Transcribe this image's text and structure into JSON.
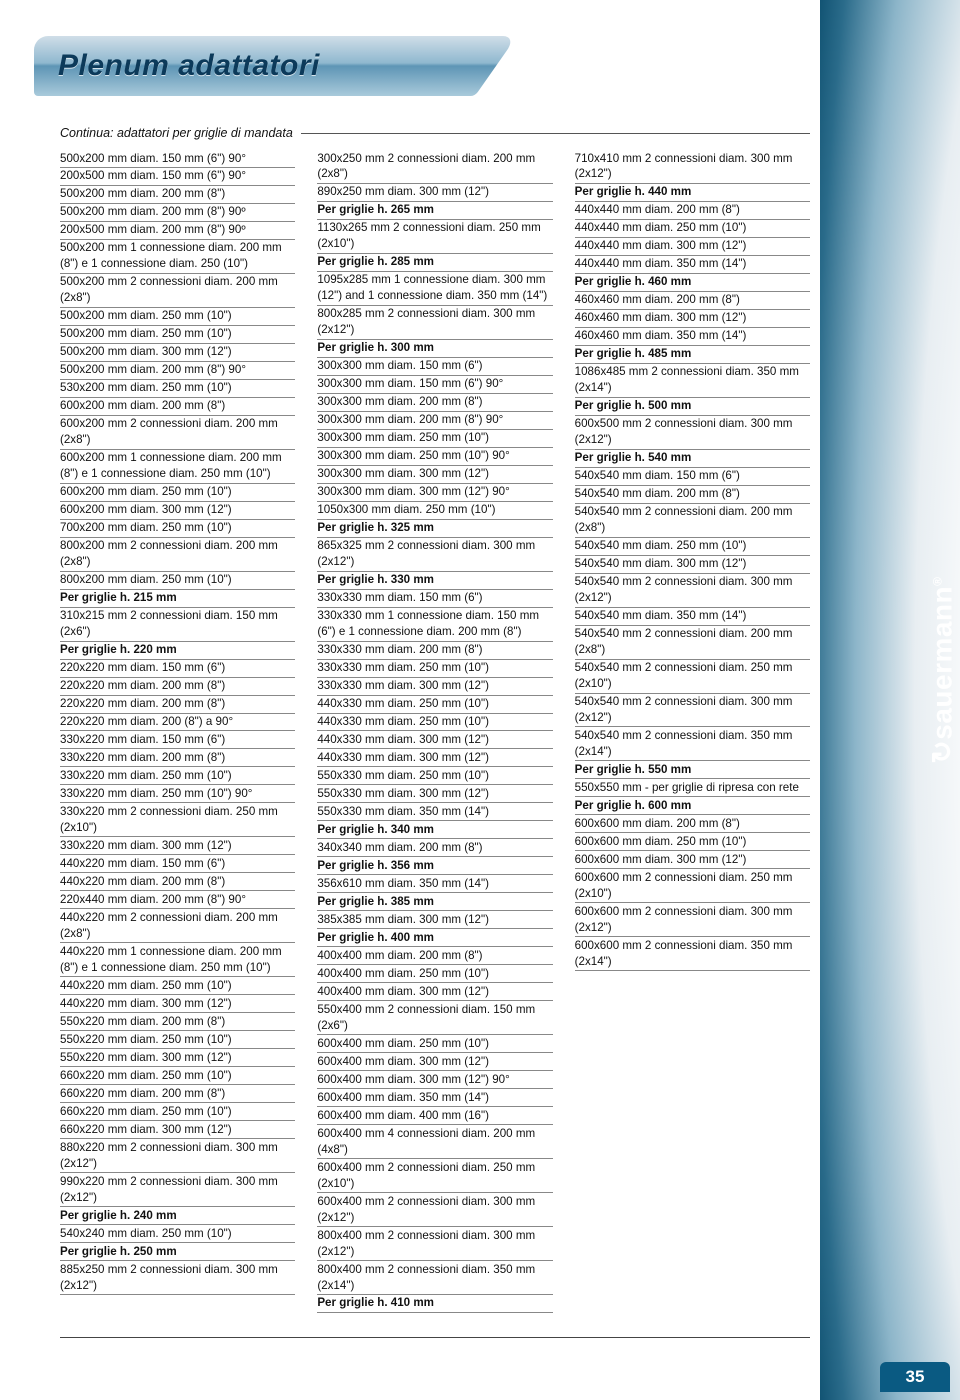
{
  "header": {
    "title": "Plenum adattatori"
  },
  "subtitle": "Continua: adattatori per griglie di mandata",
  "brand": "sauermann",
  "page_number": "35",
  "colors": {
    "page_bg": "#ffffff",
    "tab_gradient_top": "#d0dee8",
    "tab_gradient_bottom": "#a9cadb",
    "tab_text": "#0c3a5a",
    "curve_dark": "#084a6a",
    "line": "#888888",
    "text": "#111111",
    "footer_tab": "#0a5a82"
  },
  "typography": {
    "title_fontsize_pt": 22,
    "subtitle_fontsize_pt": 9.5,
    "row_fontsize_pt": 8.5,
    "brand_fontsize_pt": 20
  },
  "rows": [
    {
      "t": "500x200 mm diam. 150 mm (6\") 90°"
    },
    {
      "t": "200x500 mm diam. 150 mm (6\") 90°"
    },
    {
      "t": "500x200 mm diam. 200 mm (8\")"
    },
    {
      "t": "500x200 mm diam. 200 mm (8\") 90º"
    },
    {
      "t": "200x500 mm diam. 200 mm (8\") 90º"
    },
    {
      "t": "500x200 mm 1 connessione diam. 200 mm (8\") e 1 connessione diam. 250 (10\")"
    },
    {
      "t": "500x200 mm 2 connessioni diam. 200 mm (2x8\")"
    },
    {
      "t": "500x200 mm diam. 250 mm (10\")"
    },
    {
      "t": "500x200 mm diam. 250 mm (10\")"
    },
    {
      "t": "500x200 mm diam. 300 mm (12\")"
    },
    {
      "t": "500x200 mm diam. 200 mm (8\") 90°"
    },
    {
      "t": "530x200 mm diam. 250 mm (10\")"
    },
    {
      "t": "600x200 mm diam. 200 mm (8\")"
    },
    {
      "t": "600x200 mm 2 connessioni diam. 200 mm (2x8\")"
    },
    {
      "t": "600x200 mm 1 connessione diam. 200 mm (8\") e 1 connessione diam. 250 mm (10\")"
    },
    {
      "t": "600x200 mm diam. 250 mm (10\")"
    },
    {
      "t": "600x200 mm diam. 300 mm (12\")"
    },
    {
      "t": "700x200 mm diam. 250 mm (10\")"
    },
    {
      "t": "800x200 mm 2 connessioni diam. 200 mm (2x8\")"
    },
    {
      "t": "800x200 mm diam. 250 mm (10\")"
    },
    {
      "t": "Per griglie h. 215 mm",
      "h": true
    },
    {
      "t": "310x215 mm 2 connessioni diam. 150 mm (2x6\")"
    },
    {
      "t": "Per griglie h. 220 mm",
      "h": true
    },
    {
      "t": "220x220 mm diam. 150 mm (6\")"
    },
    {
      "t": "220x220 mm diam. 200 mm (8\")"
    },
    {
      "t": "220x220 mm diam. 200 mm (8\")"
    },
    {
      "t": "220x220 mm diam. 200 (8\") a 90°"
    },
    {
      "t": "330x220 mm diam. 150 mm (6\")"
    },
    {
      "t": "330x220 mm diam. 200 mm (8\")"
    },
    {
      "t": "330x220 mm diam. 250 mm (10\")"
    },
    {
      "t": "330x220 mm diam. 250 mm (10\") 90°"
    },
    {
      "t": "330x220 mm 2 connessioni diam. 250 mm (2x10\")"
    },
    {
      "t": "330x220 mm diam. 300 mm (12\")"
    },
    {
      "t": "440x220 mm diam. 150 mm (6\")"
    },
    {
      "t": "440x220 mm diam. 200 mm (8\")"
    },
    {
      "t": "220x440 mm diam. 200 mm (8\") 90°"
    },
    {
      "t": "440x220 mm 2 connessioni diam. 200 mm (2x8\")"
    },
    {
      "t": "440x220 mm 1 connessione diam. 200 mm (8\") e 1 connessione diam. 250 mm (10\")"
    },
    {
      "t": "440x220 mm diam. 250 mm (10\")"
    },
    {
      "t": "440x220 mm diam. 300 mm (12\")"
    },
    {
      "t": "550x220 mm diam. 200 mm (8\")"
    },
    {
      "t": "550x220 mm diam. 250 mm (10\")"
    },
    {
      "t": "550x220 mm diam. 300 mm (12\")"
    },
    {
      "t": "660x220 mm diam. 250 mm (10\")"
    },
    {
      "t": "660x220 mm diam. 200 mm (8\")"
    },
    {
      "t": "660x220 mm diam. 250 mm (10\")"
    },
    {
      "t": "660x220 mm diam. 300 mm (12\")"
    },
    {
      "t": "880x220 mm 2 connessioni diam. 300 mm (2x12\")"
    },
    {
      "t": "990x220 mm 2 connessioni diam. 300 mm (2x12\")"
    },
    {
      "t": "Per griglie h. 240 mm",
      "h": true
    },
    {
      "t": "540x240 mm diam. 250 mm (10\")"
    },
    {
      "t": "Per griglie h. 250 mm",
      "h": true
    },
    {
      "t": "885x250 mm 2 connessioni diam. 300 mm (2x12\")"
    },
    {
      "t": "300x250 mm 2 connessioni diam. 200 mm (2x8\")"
    },
    {
      "t": "890x250 mm diam. 300 mm (12\")"
    },
    {
      "t": "Per griglie h. 265 mm",
      "h": true
    },
    {
      "t": "1130x265 mm 2 connessioni diam. 250 mm (2x10\")"
    },
    {
      "t": "Per griglie h. 285 mm",
      "h": true
    },
    {
      "t": "1095x285 mm 1 connessione diam. 300 mm (12\") and 1 connessione diam. 350 mm (14\")"
    },
    {
      "t": "800x285 mm 2 connessioni diam. 300 mm (2x12\")"
    },
    {
      "t": "Per griglie h. 300 mm",
      "h": true
    },
    {
      "t": "300x300 mm diam. 150 mm (6\")"
    },
    {
      "t": "300x300 mm diam. 150 mm (6\") 90°"
    },
    {
      "t": "300x300 mm diam. 200 mm (8\")"
    },
    {
      "t": "300x300 mm diam. 200 mm (8\") 90°"
    },
    {
      "t": "300x300 mm diam. 250 mm (10\")"
    },
    {
      "t": "300x300 mm diam. 250 mm (10\") 90°"
    },
    {
      "t": "300x300 mm diam. 300 mm (12\")"
    },
    {
      "t": "300x300 mm diam. 300 mm (12\") 90°"
    },
    {
      "t": "1050x300 mm diam. 250 mm (10\")"
    },
    {
      "t": "Per griglie h. 325 mm",
      "h": true
    },
    {
      "t": "865x325 mm 2 connessioni diam. 300 mm (2x12\")"
    },
    {
      "t": "Per griglie h. 330 mm",
      "h": true
    },
    {
      "t": "330x330 mm diam. 150 mm (6\")"
    },
    {
      "t": "330x330 mm 1 connessione diam. 150 mm (6\") e 1 connessione diam. 200 mm (8\")"
    },
    {
      "t": "330x330 mm diam. 200 mm (8\")"
    },
    {
      "t": "330x330 mm diam. 250 mm (10\")"
    },
    {
      "t": "330x330 mm diam. 300 mm (12\")"
    },
    {
      "t": "440x330 mm diam. 250 mm (10\")"
    },
    {
      "t": "440x330 mm diam. 250 mm (10\")"
    },
    {
      "t": "440x330 mm diam. 300 mm (12\")"
    },
    {
      "t": "440x330 mm diam. 300 mm (12\")"
    },
    {
      "t": "550x330 mm diam. 250 mm (10\")"
    },
    {
      "t": "550x330 mm diam. 300 mm (12\")"
    },
    {
      "t": "550x330 mm diam. 350 mm (14\")"
    },
    {
      "t": "Per griglie h. 340 mm",
      "h": true
    },
    {
      "t": "340x340 mm diam. 200 mm (8\")"
    },
    {
      "t": "Per griglie h. 356 mm",
      "h": true
    },
    {
      "t": "356x610 mm diam. 350 mm (14\")"
    },
    {
      "t": "Per griglie h. 385 mm",
      "h": true
    },
    {
      "t": "385x385 mm diam. 300 mm (12\")"
    },
    {
      "t": "Per griglie h. 400 mm",
      "h": true
    },
    {
      "t": "400x400 mm diam. 200 mm (8\")"
    },
    {
      "t": "400x400 mm diam. 250 mm (10\")"
    },
    {
      "t": "400x400 mm diam. 300 mm (12\")"
    },
    {
      "t": "550x400 mm 2 connessioni diam. 150 mm (2x6\")"
    },
    {
      "t": "600x400 mm diam. 250 mm (10\")"
    },
    {
      "t": "600x400 mm diam. 300 mm (12\")"
    },
    {
      "t": "600x400 mm diam. 300 mm (12\") 90°"
    },
    {
      "t": "600x400 mm diam. 350 mm (14\")"
    },
    {
      "t": "600x400 mm diam. 400 mm (16\")"
    },
    {
      "t": "600x400 mm 4 connessioni diam. 200 mm (4x8\")"
    },
    {
      "t": "600x400 mm 2 connessioni diam. 250 mm (2x10\")"
    },
    {
      "t": "600x400 mm 2 connessioni diam. 300 mm (2x12\")"
    },
    {
      "t": "800x400 mm 2 connessioni diam. 300 mm (2x12\")"
    },
    {
      "t": "800x400 mm 2 connessioni diam. 350 mm (2x14\")"
    },
    {
      "t": "Per griglie h. 410 mm",
      "h": true
    },
    {
      "t": "710x410 mm 2 connessioni diam. 300 mm (2x12\")"
    },
    {
      "t": "Per griglie h. 440 mm",
      "h": true
    },
    {
      "t": "440x440 mm diam. 200 mm (8\")"
    },
    {
      "t": "440x440 mm diam. 250 mm (10\")"
    },
    {
      "t": "440x440 mm diam. 300 mm (12\")"
    },
    {
      "t": "440x440 mm diam. 350 mm (14\")"
    },
    {
      "t": "Per griglie h. 460 mm",
      "h": true
    },
    {
      "t": "460x460 mm diam. 200 mm (8\")"
    },
    {
      "t": "460x460 mm diam. 300 mm (12\")"
    },
    {
      "t": "460x460 mm diam. 350 mm (14\")"
    },
    {
      "t": "Per griglie h. 485 mm",
      "h": true
    },
    {
      "t": "1086x485 mm 2 connessioni diam. 350 mm (2x14\")"
    },
    {
      "t": "Per griglie h. 500 mm",
      "h": true
    },
    {
      "t": "600x500 mm 2 connessioni diam. 300 mm (2x12\")"
    },
    {
      "t": "Per griglie h. 540 mm",
      "h": true
    },
    {
      "t": "540x540 mm diam. 150 mm (6\")"
    },
    {
      "t": "540x540 mm diam. 200 mm (8\")"
    },
    {
      "t": "540x540 mm 2 connessioni diam. 200 mm (2x8\")"
    },
    {
      "t": "540x540 mm diam. 250 mm (10\")"
    },
    {
      "t": "540x540 mm diam. 300 mm (12\")"
    },
    {
      "t": "540x540 mm 2 connessioni diam. 300 mm (2x12\")"
    },
    {
      "t": "540x540 mm diam. 350 mm (14\")"
    },
    {
      "t": "540x540 mm 2 connessioni diam. 200 mm (2x8\")"
    },
    {
      "t": "540x540 mm 2 connessioni diam. 250 mm (2x10\")"
    },
    {
      "t": "540x540 mm 2 connessioni diam. 300 mm (2x12\")"
    },
    {
      "t": "540x540 mm 2 connessioni diam. 350 mm (2x14\")"
    },
    {
      "t": "Per griglie h. 550 mm",
      "h": true
    },
    {
      "t": "550x550 mm - per griglie di ripresa con rete"
    },
    {
      "t": "Per griglie h. 600 mm",
      "h": true
    },
    {
      "t": "600x600 mm diam. 200 mm (8\")"
    },
    {
      "t": "600x600 mm diam. 250 mm (10\")"
    },
    {
      "t": "600x600 mm diam. 300 mm (12\")"
    },
    {
      "t": "600x600 mm 2 connessioni diam. 250 mm (2x10\")"
    },
    {
      "t": "600x600 mm 2 connessioni diam. 300 mm (2x12\")"
    },
    {
      "t": "600x600 mm 2 connessioni diam. 350 mm (2x14\")"
    }
  ]
}
